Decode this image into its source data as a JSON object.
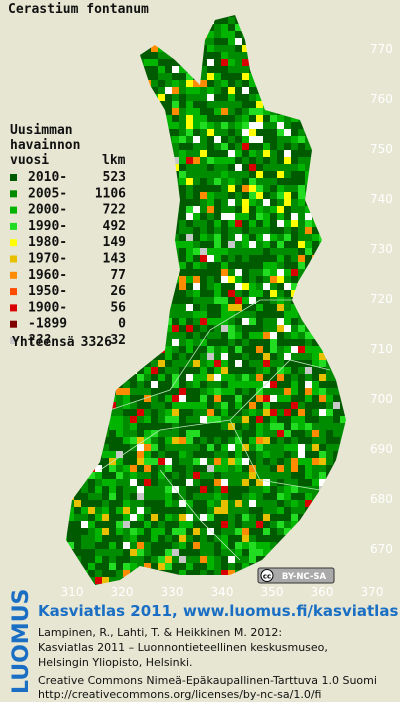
{
  "map": {
    "title": "Cerastium fontanum",
    "legend": {
      "heading": [
        "Uusimman",
        "havainnon",
        "vuosi"
      ],
      "count_heading": "lkm",
      "rows": [
        {
          "label": "2010-",
          "count": 523,
          "color": "#005a00"
        },
        {
          "label": "2005-",
          "count": 1106,
          "color": "#008c00"
        },
        {
          "label": "2000-",
          "count": 722,
          "color": "#00b400"
        },
        {
          "label": "1990-",
          "count": 492,
          "color": "#22dc22"
        },
        {
          "label": "1980-",
          "count": 149,
          "color": "#ffff00"
        },
        {
          "label": "1970-",
          "count": 143,
          "color": "#e8c000"
        },
        {
          "label": "1960-",
          "count": 77,
          "color": "#ff8c00"
        },
        {
          "label": "1950-",
          "count": 26,
          "color": "#ff4a00"
        },
        {
          "label": "1900-",
          "count": 56,
          "color": "#d80000"
        },
        {
          "label": "-1899",
          "count": 0,
          "color": "#800000"
        },
        {
          "label": "???",
          "count": 32,
          "color": "#c8c8c8"
        }
      ],
      "total_label": "Yhteensä",
      "total": 3326
    },
    "y_labels": [
      770,
      760,
      750,
      740,
      730,
      720,
      710,
      700,
      690,
      680,
      670
    ],
    "x_labels": [
      310,
      320,
      330,
      340,
      350,
      360,
      370
    ],
    "badge": {
      "cc": "cc",
      "text": "BY-NC-SA"
    }
  },
  "footer": {
    "logo": "LUOMUS",
    "headline": "Kasviatlas 2011, www.luomus.fi/kasviatlas",
    "citation": [
      "Lampinen, R., Lahti, T. & Heikkinen M. 2012:",
      "Kasviatlas 2011 – Luonnontieteellinen keskusmuseo,",
      "Helsingin Yliopisto, Helsinki."
    ],
    "license": [
      "Creative Commons Nimeä-Epäkaupallinen-Tarttuva 1.0 Suomi",
      "http://creativecommons.org/licenses/by-nc-sa/1.0/fi"
    ]
  }
}
